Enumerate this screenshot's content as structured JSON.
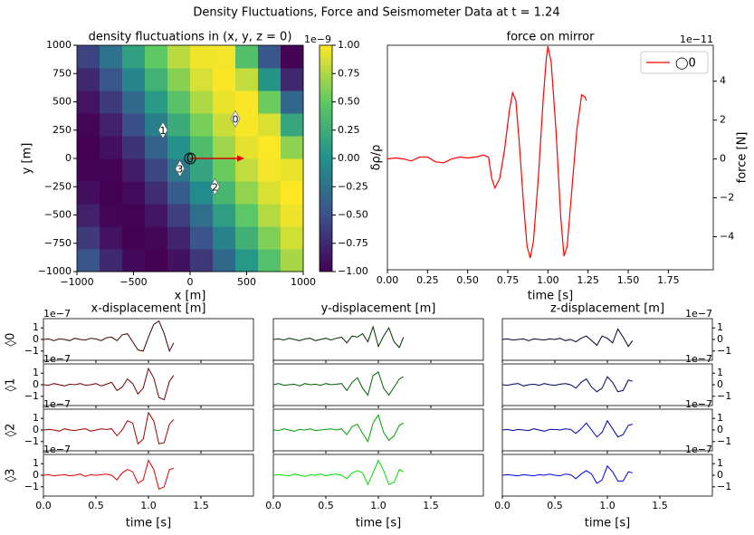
{
  "title": "Density Fluctuations, Force and Seismometer Data at t = 1.24",
  "chart_data": [
    {
      "type": "heatmap",
      "title": "density fluctuations in (x, y, z = 0)",
      "xlabel": "x [m]",
      "ylabel": "y [m]",
      "x": [
        -900,
        -700,
        -500,
        -300,
        -100,
        100,
        300,
        500,
        700,
        900
      ],
      "y": [
        -900,
        -700,
        -500,
        -300,
        -100,
        100,
        300,
        500,
        700,
        900
      ],
      "z": [
        [
          -0.47,
          -0.76,
          -0.95,
          -1.0,
          -0.9,
          -0.66,
          -0.34,
          0.05,
          0.42,
          0.73
        ],
        [
          -0.65,
          -0.89,
          -1.0,
          -0.96,
          -0.78,
          -0.48,
          -0.12,
          0.27,
          0.61,
          0.86
        ],
        [
          -0.8,
          -0.97,
          -0.99,
          -0.87,
          -0.62,
          -0.28,
          0.11,
          0.47,
          0.77,
          0.95
        ],
        [
          -0.92,
          -1.0,
          -0.94,
          -0.73,
          -0.43,
          -0.05,
          0.33,
          0.66,
          0.89,
          1.0
        ],
        [
          -0.98,
          -0.98,
          -0.83,
          -0.57,
          -0.21,
          0.17,
          0.53,
          0.81,
          0.97,
          0.94
        ],
        [
          -1.0,
          -0.91,
          -0.69,
          -0.37,
          0.01,
          0.38,
          0.7,
          0.92,
          1.0,
          0.65
        ],
        [
          -0.97,
          -0.8,
          -0.51,
          -0.15,
          0.23,
          0.58,
          0.84,
          0.98,
          0.89,
          0.19
        ],
        [
          -0.88,
          -0.64,
          -0.31,
          0.07,
          0.44,
          0.75,
          0.94,
          0.99,
          0.54,
          -0.33
        ],
        [
          -0.76,
          -0.46,
          -0.09,
          0.29,
          0.63,
          0.88,
          0.99,
          0.81,
          0.04,
          -0.76
        ],
        [
          -0.59,
          -0.25,
          0.13,
          0.5,
          0.79,
          0.96,
          0.97,
          0.41,
          -0.46,
          -0.98
        ]
      ],
      "xlim": [
        -1000,
        1000
      ],
      "ylim": [
        -1000,
        1000
      ],
      "xticks": [
        {
          "value": -1000,
          "label": "−1000"
        },
        {
          "value": -500,
          "label": "−500"
        },
        0,
        500,
        1000
      ],
      "yticks": [
        {
          "value": -1000,
          "label": "−1000"
        },
        {
          "value": -750,
          "label": "−750"
        },
        {
          "value": -500,
          "label": "−500"
        },
        {
          "value": -250,
          "label": "−250"
        },
        0,
        250,
        500,
        750,
        1000
      ],
      "colormap": [
        "#440154",
        "#3b528b",
        "#21918c",
        "#5ec962",
        "#fde725"
      ],
      "clim": [
        -1,
        1
      ],
      "cticks": [
        {
          "value": -1,
          "label": "−1.00"
        },
        {
          "value": -0.75,
          "label": "−0.75"
        },
        {
          "value": -0.5,
          "label": "−0.50"
        },
        {
          "value": -0.25,
          "label": "−0.25"
        },
        {
          "value": 0,
          "label": "0.00"
        },
        {
          "value": 0.25,
          "label": "0.25"
        },
        {
          "value": 0.5,
          "label": "0.50"
        },
        {
          "value": 0.75,
          "label": "0.75"
        },
        {
          "value": 1,
          "label": "1.00"
        }
      ],
      "offset": "1e−9",
      "markers": [
        {
          "label": "0",
          "x": 400,
          "y": 350
        },
        {
          "label": "1",
          "x": -240,
          "y": 250
        },
        {
          "label": "2",
          "x": 220,
          "y": -250
        },
        {
          "label": "3",
          "x": -90,
          "y": -90
        }
      ],
      "mirror": {
        "label": "0",
        "x": 0,
        "y": 0,
        "arrow_x": 480,
        "arrow_y": 0,
        "color": "#e00000"
      }
    },
    {
      "type": "line",
      "title": "force on mirror",
      "xlabel": "time [s]",
      "ylabel": "δρ/ρ",
      "y2label": "force [N]",
      "offset": "1e−11",
      "x": [
        0,
        0.05,
        0.1,
        0.15,
        0.2,
        0.25,
        0.3,
        0.35,
        0.4,
        0.45,
        0.5,
        0.55,
        0.6,
        0.63,
        0.65,
        0.67,
        0.7,
        0.73,
        0.76,
        0.78,
        0.8,
        0.82,
        0.85,
        0.87,
        0.89,
        0.91,
        0.94,
        0.97,
        0.99,
        1.0,
        1.02,
        1.05,
        1.08,
        1.1,
        1.12,
        1.15,
        1.18,
        1.21,
        1.23,
        1.24
      ],
      "series": [
        {
          "name": "◯0",
          "color": "#ff0000",
          "axis": "y2",
          "values": [
            0,
            0.05,
            0,
            -0.1,
            0.1,
            0.1,
            -0.15,
            -0.2,
            0,
            0.1,
            0.05,
            0.1,
            0.2,
            0.1,
            -1.0,
            -1.5,
            -1.0,
            0.5,
            2.5,
            3.4,
            3.0,
            1.0,
            -2.5,
            -4.5,
            -5.1,
            -4.2,
            -1.0,
            3.0,
            5.2,
            5.8,
            5.0,
            1.5,
            -3.0,
            -5.0,
            -4.5,
            -1.5,
            1.5,
            3.3,
            3.2,
            3.0
          ]
        }
      ],
      "xlim": [
        0,
        2.03
      ],
      "xticks": [
        {
          "value": 0,
          "label": "0.00"
        },
        {
          "value": 0.25,
          "label": "0.25"
        },
        {
          "value": 0.5,
          "label": "0.50"
        },
        {
          "value": 0.75,
          "label": "0.75"
        },
        {
          "value": 1,
          "label": "1.00"
        },
        {
          "value": 1.25,
          "label": "1.25"
        },
        {
          "value": 1.5,
          "label": "1.50"
        },
        {
          "value": 1.75,
          "label": "1.75"
        }
      ],
      "y2lim": [
        -5.7,
        5.85
      ],
      "y2ticks": [
        {
          "value": -4,
          "label": "−4"
        },
        {
          "value": -2,
          "label": "−2"
        },
        0,
        2,
        4
      ],
      "legend": "upper right"
    },
    {
      "type": "line-grid",
      "titles": [
        "x-displacement [m]",
        "y-displacement [m]",
        "z-displacement [m]"
      ],
      "row_labels": [
        "◊0",
        "◊1",
        "◊2",
        "◊3"
      ],
      "xlabel": "time [s]",
      "offset": "1e−7",
      "x": [
        0,
        0.05,
        0.1,
        0.15,
        0.2,
        0.25,
        0.3,
        0.35,
        0.4,
        0.45,
        0.5,
        0.55,
        0.6,
        0.65,
        0.7,
        0.75,
        0.8,
        0.85,
        0.9,
        0.95,
        1.0,
        1.05,
        1.1,
        1.15,
        1.2,
        1.24
      ],
      "xlim": [
        0,
        2
      ],
      "xticks": [
        {
          "value": 0,
          "label": "0.0"
        },
        0.5,
        {
          "value": 1,
          "label": "1.0"
        },
        1.5
      ],
      "ylim": [
        -1.8,
        1.8
      ],
      "yticks": [
        {
          "value": -1,
          "label": "−1"
        },
        0,
        1
      ],
      "series": [
        {
          "color": "#400000",
          "values": [
            0.0,
            0.05,
            -0.1,
            0.05,
            0.0,
            -0.1,
            0.1,
            0.0,
            -0.05,
            0.1,
            0.05,
            -0.1,
            0.15,
            0.2,
            -0.1,
            0.4,
            0.5,
            -0.2,
            -0.9,
            -1.0,
            0.2,
            1.3,
            1.6,
            0.5,
            -1.0,
            -0.3
          ]
        },
        {
          "color": "#003000",
          "values": [
            0.0,
            0.05,
            -0.05,
            0.1,
            0.0,
            -0.1,
            0.05,
            0.1,
            -0.1,
            0.0,
            0.1,
            -0.05,
            0.1,
            0.2,
            -0.3,
            0.3,
            0.2,
            0.5,
            -0.2,
            1.1,
            -0.6,
            0.3,
            1.0,
            -0.2,
            -0.7,
            0.2
          ]
        },
        {
          "color": "#000030",
          "values": [
            0.0,
            0.05,
            -0.05,
            0.0,
            0.05,
            -0.1,
            0.05,
            0.0,
            -0.05,
            0.05,
            0.0,
            0.1,
            -0.1,
            0.0,
            -0.2,
            0.1,
            0.3,
            -0.1,
            -0.5,
            0.3,
            0.1,
            -0.3,
            0.9,
            0.2,
            -0.6,
            -0.1
          ]
        },
        {
          "color": "#700000",
          "values": [
            0.0,
            -0.05,
            0.1,
            0.0,
            -0.1,
            0.05,
            0.0,
            0.1,
            -0.05,
            0.0,
            0.1,
            -0.1,
            0.05,
            0.2,
            -0.5,
            -0.2,
            0.5,
            0.1,
            -0.8,
            -0.3,
            1.4,
            0.6,
            -1.1,
            -1.3,
            0.3,
            0.8
          ]
        },
        {
          "color": "#006000",
          "values": [
            0.0,
            0.1,
            -0.05,
            0.0,
            0.05,
            -0.1,
            0.1,
            0.0,
            0.05,
            -0.05,
            0.1,
            0.0,
            0.05,
            0.1,
            -0.5,
            0.2,
            0.6,
            -0.3,
            -0.9,
            0.8,
            1.1,
            -0.3,
            -0.9,
            -0.2,
            0.5,
            0.7
          ]
        },
        {
          "color": "#000060",
          "values": [
            0.0,
            -0.05,
            0.05,
            0.1,
            -0.1,
            0.0,
            0.05,
            -0.05,
            0.1,
            0.0,
            -0.05,
            0.05,
            0.1,
            0.0,
            -0.3,
            0.2,
            0.5,
            -0.2,
            -0.6,
            -0.3,
            0.7,
            0.2,
            -0.6,
            -0.5,
            0.4,
            0.3
          ]
        },
        {
          "color": "#a00000",
          "values": [
            0.0,
            0.05,
            0.0,
            -0.1,
            0.1,
            0.0,
            -0.05,
            0.05,
            0.1,
            -0.1,
            0.0,
            0.1,
            0.05,
            0.1,
            -0.5,
            0.0,
            0.8,
            0.6,
            -1.2,
            -0.8,
            1.5,
            0.8,
            -1.2,
            -1.1,
            0.5,
            0.9
          ]
        },
        {
          "color": "#00a000",
          "values": [
            0.0,
            -0.05,
            0.1,
            0.0,
            -0.1,
            0.05,
            0.0,
            0.1,
            -0.05,
            0.0,
            0.05,
            0.1,
            0.0,
            0.1,
            -0.4,
            0.3,
            0.5,
            -0.3,
            -1.0,
            0.6,
            1.3,
            -0.2,
            -0.9,
            -0.5,
            0.4,
            0.6
          ]
        },
        {
          "color": "#0000a0",
          "values": [
            0.0,
            0.05,
            -0.05,
            0.05,
            0.0,
            -0.05,
            0.1,
            0.0,
            -0.1,
            0.05,
            0.05,
            0.0,
            0.1,
            0.05,
            -0.3,
            0.1,
            0.6,
            0.0,
            -0.6,
            -0.2,
            0.8,
            0.1,
            -0.6,
            -0.4,
            0.4,
            0.5
          ]
        },
        {
          "color": "#e00000",
          "values": [
            0.0,
            0.05,
            -0.05,
            0.0,
            0.05,
            -0.05,
            0.0,
            0.1,
            -0.1,
            0.05,
            0.0,
            0.05,
            0.1,
            0.0,
            -0.4,
            0.2,
            0.5,
            0.3,
            -0.7,
            -0.4,
            1.3,
            0.5,
            -1.2,
            -1.0,
            0.5,
            0.6
          ]
        },
        {
          "color": "#00e000",
          "values": [
            0.0,
            0.05,
            0.0,
            -0.05,
            0.1,
            0.0,
            -0.1,
            0.05,
            0.0,
            0.1,
            -0.05,
            0.05,
            0.1,
            0.0,
            -0.3,
            0.2,
            0.4,
            0.2,
            -0.8,
            0.2,
            1.3,
            0.4,
            -0.8,
            -0.6,
            0.5,
            0.3
          ]
        },
        {
          "color": "#0000e0",
          "values": [
            0.0,
            0.05,
            0.0,
            -0.05,
            0.05,
            0.0,
            -0.05,
            0.05,
            0.0,
            0.1,
            0.0,
            -0.05,
            0.1,
            0.05,
            -0.3,
            0.1,
            0.4,
            0.1,
            -0.7,
            -0.4,
            0.8,
            0.3,
            -0.5,
            -0.5,
            0.3,
            0.2
          ]
        }
      ]
    }
  ]
}
